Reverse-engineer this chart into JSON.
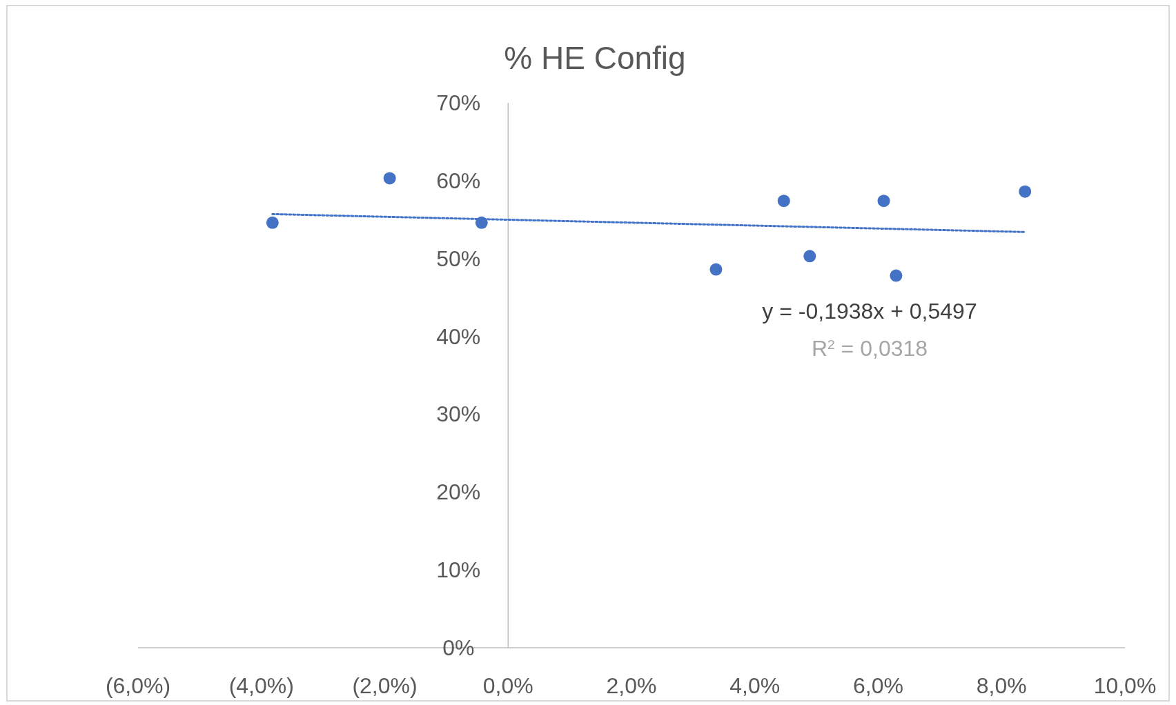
{
  "chart_data": {
    "type": "scatter",
    "title": "% HE Config",
    "xlim": [
      -6,
      10
    ],
    "xticks": [
      {
        "value": -6,
        "label": "(6,0%)"
      },
      {
        "value": -4,
        "label": "(4,0%)"
      },
      {
        "value": -2,
        "label": "(2,0%)"
      },
      {
        "value": 0,
        "label": "0,0%"
      },
      {
        "value": 2,
        "label": "2,0%"
      },
      {
        "value": 4,
        "label": "4,0%"
      },
      {
        "value": 6,
        "label": "6,0%"
      },
      {
        "value": 8,
        "label": "8,0%"
      },
      {
        "value": 10,
        "label": "10,0%"
      }
    ],
    "ylim": [
      0,
      70
    ],
    "yticks": [
      {
        "value": 0,
        "label": "0%"
      },
      {
        "value": 10,
        "label": "10%"
      },
      {
        "value": 20,
        "label": "20%"
      },
      {
        "value": 30,
        "label": "30%"
      },
      {
        "value": 40,
        "label": "40%"
      },
      {
        "value": 50,
        "label": "50%"
      },
      {
        "value": 60,
        "label": "60%"
      },
      {
        "value": 70,
        "label": "70%"
      }
    ],
    "grid": false,
    "series": [
      {
        "marker": "circle",
        "color": "#4472c4",
        "x": [
          -3.82,
          -1.92,
          -0.43,
          3.37,
          4.47,
          4.89,
          6.09,
          6.29,
          8.38
        ],
        "values": [
          54.6,
          60.3,
          54.6,
          48.6,
          57.4,
          50.3,
          57.4,
          47.8,
          58.6
        ]
      },
      {
        "type": "line",
        "color": "#4472c4",
        "line_style": "dotted",
        "x": [
          -3.82,
          8.38
        ],
        "values": [
          55.7,
          53.4
        ]
      }
    ],
    "annotations": [
      "y = -0,1938x  + 0,5497",
      "R$^{2}$ = 0,0318"
    ]
  }
}
